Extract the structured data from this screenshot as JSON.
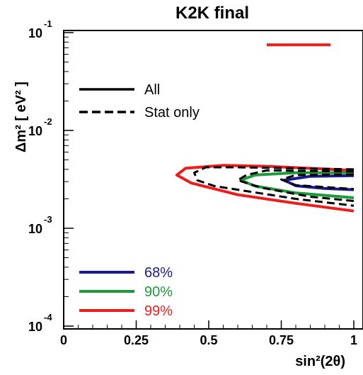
{
  "chart_data": {
    "type": "line",
    "title": "K2K final",
    "xlabel": "sin²(2θ)",
    "ylabel": "Δm² [ eV² ]",
    "x_scale": "linear",
    "y_scale": "log",
    "xlim": [
      0,
      1
    ],
    "ylim": [
      0.0001,
      0.1
    ],
    "x_ticks": [
      "0",
      "0.25",
      "0.5",
      "0.75",
      "1"
    ],
    "y_ticks": [
      {
        "base": "10",
        "exp": "-1",
        "value": 0.1
      },
      {
        "base": "10",
        "exp": "-2",
        "value": 0.01
      },
      {
        "base": "10",
        "exp": "-3",
        "value": 0.001
      },
      {
        "base": "10",
        "exp": "-4",
        "value": 0.0001
      }
    ],
    "style_legend": [
      {
        "label": "All",
        "dash": "solid"
      },
      {
        "label": "Stat only",
        "dash": "dashed"
      }
    ],
    "cl_legend": [
      {
        "label": "68%",
        "color": "#1a1a8c"
      },
      {
        "label": "90%",
        "color": "#1e9a3a"
      },
      {
        "label": "99%",
        "color": "#ee1c1c"
      }
    ],
    "series": [
      {
        "name": "68%",
        "style": "solid",
        "color": "#1a1a8c",
        "points": [
          [
            1.0,
            0.00345
          ],
          [
            0.85,
            0.0034
          ],
          [
            0.76,
            0.0031
          ],
          [
            0.8,
            0.00272
          ],
          [
            0.9,
            0.00255
          ],
          [
            1.0,
            0.00248
          ]
        ]
      },
      {
        "name": "90%",
        "style": "solid",
        "color": "#1e9a3a",
        "points": [
          [
            1.0,
            0.0037
          ],
          [
            0.8,
            0.0037
          ],
          [
            0.66,
            0.0035
          ],
          [
            0.61,
            0.0031
          ],
          [
            0.66,
            0.0027
          ],
          [
            0.8,
            0.0023
          ],
          [
            1.0,
            0.00205
          ]
        ]
      },
      {
        "name": "99%",
        "style": "solid",
        "color": "#ee1c1c",
        "points": [
          [
            1.0,
            0.0039
          ],
          [
            0.7,
            0.0043
          ],
          [
            0.55,
            0.0044
          ],
          [
            0.42,
            0.0041
          ],
          [
            0.39,
            0.0035
          ],
          [
            0.44,
            0.0029
          ],
          [
            0.6,
            0.0022
          ],
          [
            0.8,
            0.0018
          ],
          [
            1.0,
            0.0015
          ]
        ]
      },
      {
        "name": "99% island",
        "style": "solid",
        "color": "#ee1c1c",
        "points": [
          [
            0.7,
            0.075
          ],
          [
            0.92,
            0.075
          ]
        ]
      },
      {
        "name": "68% stat",
        "style": "dashed",
        "color": "#000000",
        "points": [
          [
            1.0,
            0.00355
          ],
          [
            0.8,
            0.0035
          ],
          [
            0.75,
            0.00315
          ],
          [
            0.8,
            0.00276
          ],
          [
            1.0,
            0.00252
          ]
        ]
      },
      {
        "name": "90% stat",
        "style": "dashed",
        "color": "#000000",
        "points": [
          [
            1.0,
            0.0038
          ],
          [
            0.7,
            0.0039
          ],
          [
            0.63,
            0.0035
          ],
          [
            0.6,
            0.0031
          ],
          [
            0.68,
            0.0026
          ],
          [
            0.85,
            0.0021
          ],
          [
            1.0,
            0.0019
          ]
        ]
      },
      {
        "name": "99% stat",
        "style": "dashed",
        "color": "#000000",
        "points": [
          [
            1.0,
            0.004
          ],
          [
            0.6,
            0.0042
          ],
          [
            0.49,
            0.0042
          ],
          [
            0.45,
            0.0037
          ],
          [
            0.46,
            0.0031
          ],
          [
            0.52,
            0.0027
          ],
          [
            0.8,
            0.002
          ],
          [
            1.0,
            0.0017
          ]
        ]
      }
    ]
  }
}
